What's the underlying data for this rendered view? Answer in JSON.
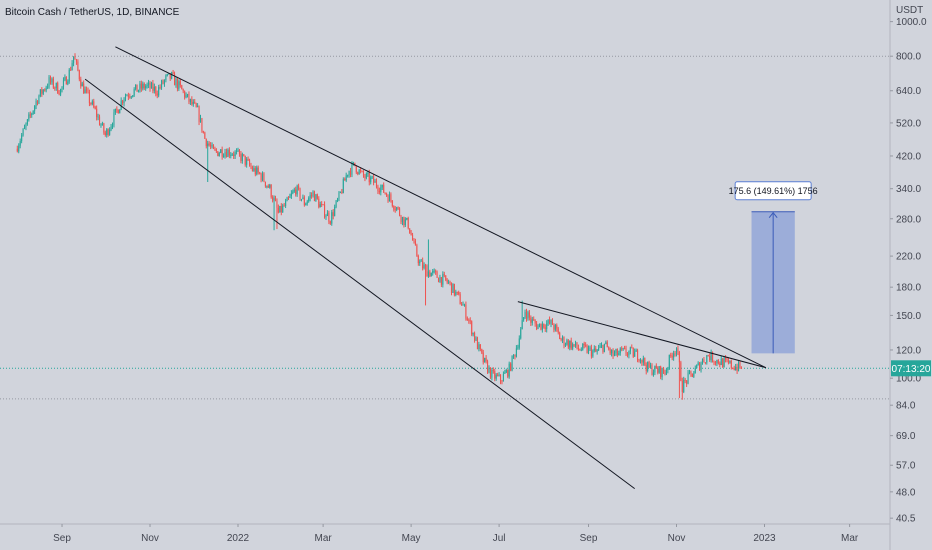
{
  "chart_data": {
    "type": "candlestick",
    "title": "Bitcoin Cash / TetherUS, 1D, BINANCE",
    "y_unit": "USDT",
    "scale": "log",
    "ylim": [
      39,
      1150
    ],
    "y_ticks": [
      "1000.0",
      "800.0",
      "640.0",
      "520.0",
      "420.0",
      "340.0",
      "280.0",
      "220.0",
      "180.0",
      "150.0",
      "120.0",
      "100.0",
      "84.0",
      "69.0",
      "57.0",
      "48.0",
      "40.5"
    ],
    "x_labels": [
      {
        "label": "Sep",
        "t": 31
      },
      {
        "label": "Nov",
        "t": 92
      },
      {
        "label": "2022",
        "t": 153
      },
      {
        "label": "Mar",
        "t": 212
      },
      {
        "label": "May",
        "t": 273
      },
      {
        "label": "Jul",
        "t": 334
      },
      {
        "label": "Sep",
        "t": 396
      },
      {
        "label": "Nov",
        "t": 457
      },
      {
        "label": "2023",
        "t": 518
      },
      {
        "label": "Mar",
        "t": 577
      }
    ],
    "x_range": [
      -12,
      605
    ],
    "price_line": {
      "value": 106.6,
      "label": "07:13:20",
      "color": "#26a69a"
    },
    "horizontal_levels": [
      {
        "value": 800,
        "color": "#9598a1"
      },
      {
        "value": 87.5,
        "color": "#9598a1"
      }
    ],
    "trend_lines": [
      {
        "from": [
          68,
          850
        ],
        "to": [
          519,
          107
        ]
      },
      {
        "from": [
          47,
          690
        ],
        "to": [
          428,
          49
        ]
      },
      {
        "from": [
          347,
          164
        ],
        "to": [
          519,
          107
        ]
      }
    ],
    "measure": {
      "t0": 509,
      "t1": 539,
      "from": 117.4,
      "to": 293,
      "label": "175.6 (149.61%) 1756",
      "fill": "#5b7fd4"
    },
    "colors": {
      "up": "#26a69a",
      "down": "#ef5350",
      "line": "#131722"
    },
    "keypoints": [
      [
        0,
        440
      ],
      [
        8,
        520
      ],
      [
        15,
        610
      ],
      [
        23,
        680
      ],
      [
        31,
        640
      ],
      [
        37,
        720
      ],
      [
        40,
        800
      ],
      [
        46,
        660
      ],
      [
        55,
        560
      ],
      [
        62,
        480
      ],
      [
        68,
        540
      ],
      [
        75,
        620
      ],
      [
        82,
        640
      ],
      [
        90,
        660
      ],
      [
        98,
        640
      ],
      [
        104,
        690
      ],
      [
        108,
        700
      ],
      [
        114,
        650
      ],
      [
        120,
        600
      ],
      [
        126,
        560
      ],
      [
        131,
        470
      ],
      [
        137,
        430
      ],
      [
        144,
        435
      ],
      [
        150,
        430
      ],
      [
        157,
        415
      ],
      [
        164,
        385
      ],
      [
        170,
        370
      ],
      [
        176,
        340
      ],
      [
        182,
        290
      ],
      [
        188,
        310
      ],
      [
        194,
        340
      ],
      [
        200,
        310
      ],
      [
        206,
        330
      ],
      [
        212,
        300
      ],
      [
        218,
        280
      ],
      [
        224,
        320
      ],
      [
        230,
        380
      ],
      [
        235,
        395
      ],
      [
        240,
        370
      ],
      [
        246,
        360
      ],
      [
        252,
        345
      ],
      [
        258,
        325
      ],
      [
        264,
        300
      ],
      [
        268,
        280
      ],
      [
        272,
        270
      ],
      [
        276,
        235
      ],
      [
        280,
        210
      ],
      [
        285,
        200
      ],
      [
        290,
        195
      ],
      [
        295,
        190
      ],
      [
        300,
        185
      ],
      [
        304,
        175
      ],
      [
        310,
        160
      ],
      [
        314,
        145
      ],
      [
        318,
        130
      ],
      [
        324,
        112
      ],
      [
        330,
        102
      ],
      [
        336,
        99
      ],
      [
        342,
        106
      ],
      [
        346,
        118
      ],
      [
        350,
        135
      ],
      [
        353,
        155
      ],
      [
        357,
        145
      ],
      [
        362,
        140
      ],
      [
        366,
        142
      ],
      [
        372,
        142
      ],
      [
        378,
        128
      ],
      [
        384,
        125
      ],
      [
        390,
        121
      ],
      [
        396,
        120
      ],
      [
        402,
        118
      ],
      [
        408,
        124
      ],
      [
        414,
        116
      ],
      [
        420,
        118
      ],
      [
        426,
        118
      ],
      [
        432,
        116
      ],
      [
        438,
        107
      ],
      [
        444,
        105
      ],
      [
        450,
        104
      ],
      [
        455,
        118
      ],
      [
        458,
        122
      ],
      [
        462,
        95
      ],
      [
        466,
        100
      ],
      [
        470,
        104
      ],
      [
        476,
        112
      ],
      [
        480,
        116
      ],
      [
        486,
        112
      ],
      [
        492,
        110
      ],
      [
        498,
        108
      ],
      [
        502,
        107
      ]
    ],
    "spikes": [
      [
        132,
        "low",
        355
      ],
      [
        178,
        "low",
        260
      ],
      [
        180,
        "low",
        262
      ],
      [
        283,
        "low",
        160
      ],
      [
        285,
        "high",
        245
      ],
      [
        350,
        "high",
        165
      ],
      [
        459,
        "low",
        88
      ],
      [
        461,
        "low",
        87
      ]
    ]
  }
}
